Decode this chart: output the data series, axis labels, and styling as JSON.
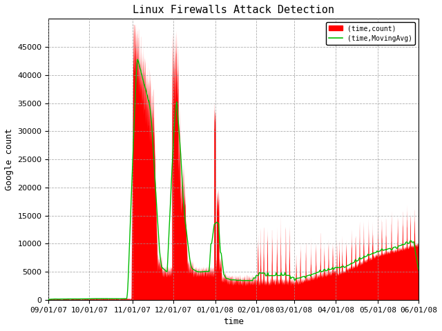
{
  "title": "Linux Firewalls Attack Detection",
  "xlabel": "time",
  "ylabel": "Google count",
  "xlim": [
    0,
    6552
  ],
  "ylim": [
    0,
    50000
  ],
  "yticks": [
    0,
    5000,
    10000,
    15000,
    20000,
    25000,
    30000,
    35000,
    40000,
    45000
  ],
  "xtick_labels": [
    "09/01/07",
    "10/01/07",
    "11/01/07",
    "12/01/07",
    "01/01/08",
    "02/01/08",
    "03/01/08",
    "04/01/08",
    "05/01/08",
    "06/01/08"
  ],
  "xtick_positions": [
    0,
    720,
    1488,
    2208,
    2952,
    3672,
    4344,
    5088,
    5832,
    6552
  ],
  "fill_color": "#ff0000",
  "line_color": "#00bb00",
  "background_color": "#ffffff",
  "grid_color": "#999999",
  "legend_labels": [
    "(time,count)",
    "(time,MovingAvg)"
  ],
  "title_fontsize": 11,
  "label_fontsize": 9,
  "tick_fontsize": 8
}
